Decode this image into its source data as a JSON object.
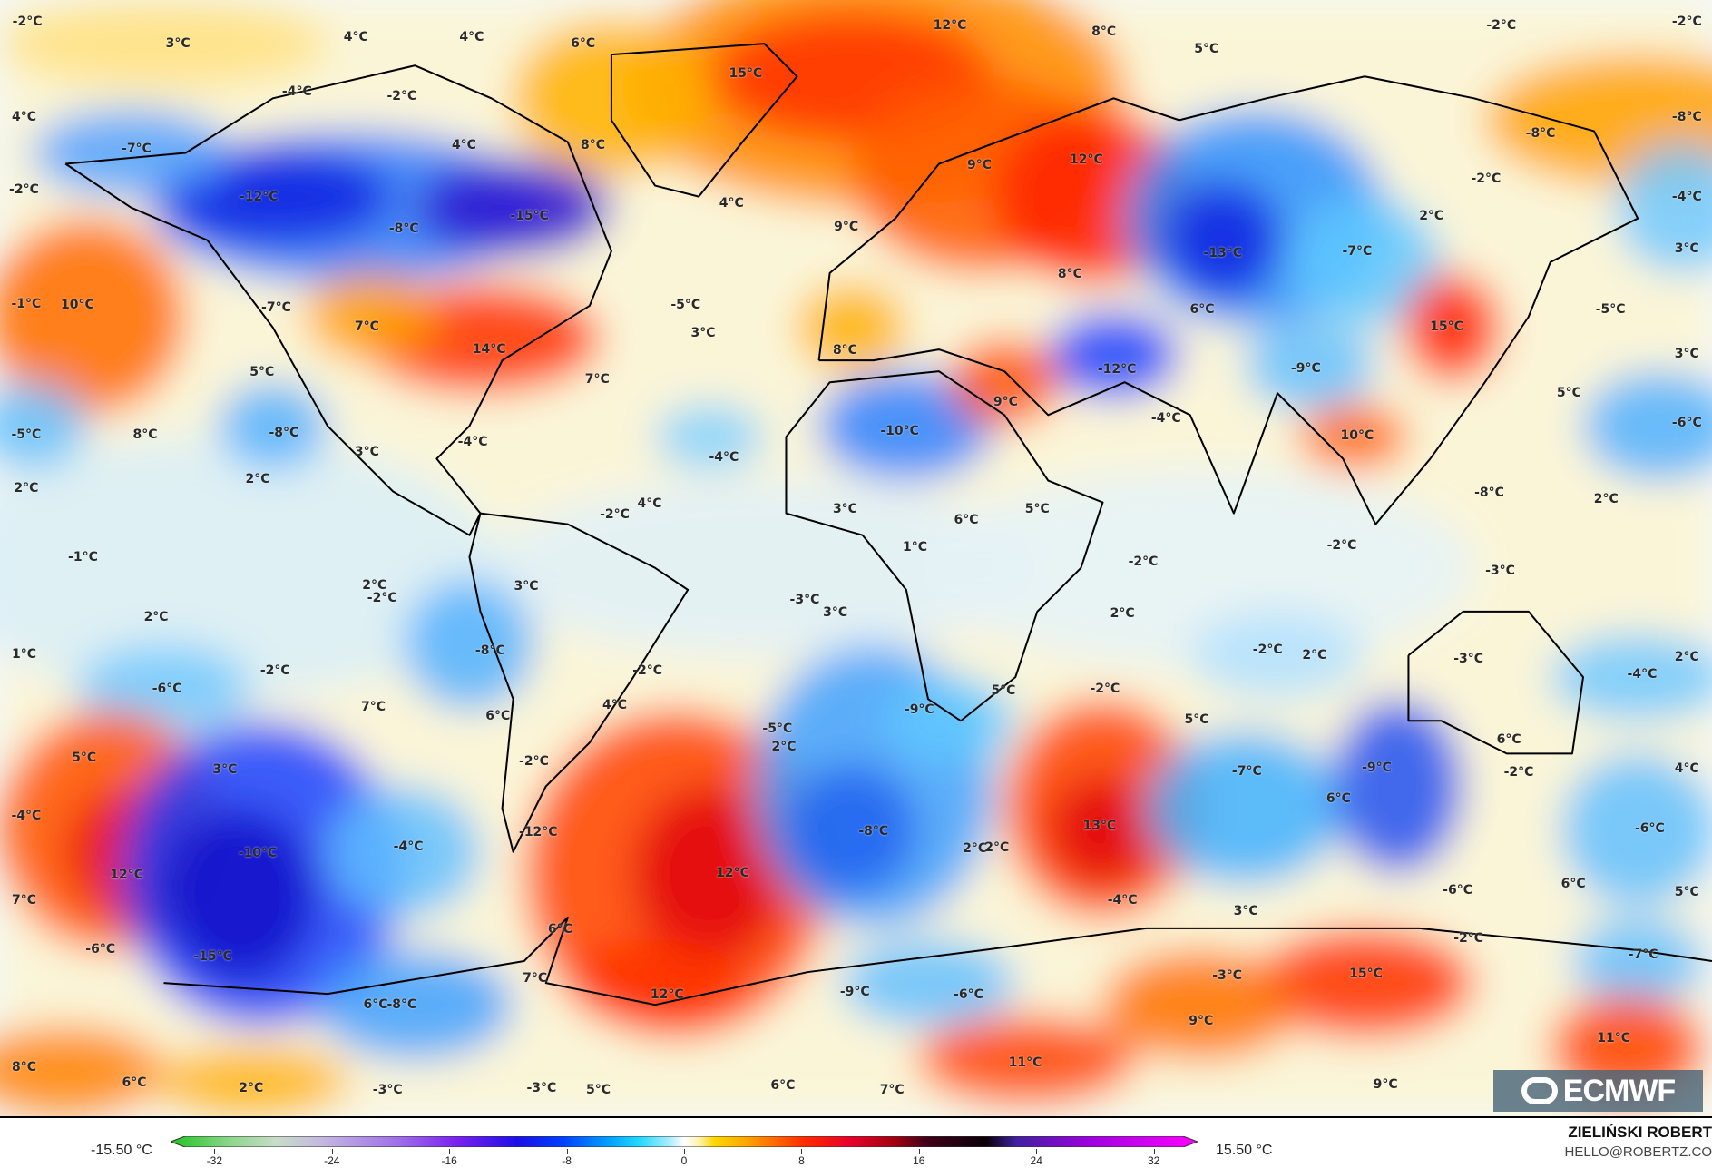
{
  "map": {
    "variable_unit": "°C",
    "labels": [
      "-2°C",
      "3°C",
      "4°C",
      "4°C",
      "6°C",
      "12°C",
      "8°C",
      "5°C",
      "-2°C",
      "-2°C",
      "15°C",
      "-4°C",
      "-2°C",
      "4°C",
      "-8°C",
      "-8°C",
      "-7°C",
      "4°C",
      "8°C",
      "9°C",
      "12°C",
      "-2°C",
      "-4°C",
      "-2°C",
      "-12°C",
      "4°C",
      "2°C",
      "-8°C",
      "-15°C",
      "9°C",
      "-13°C",
      "-7°C",
      "3°C",
      "-7°C",
      "8°C",
      "-1°C",
      "10°C",
      "7°C",
      "-5°C",
      "3°C",
      "6°C",
      "-5°C",
      "15°C",
      "14°C",
      "8°C",
      "-12°C",
      "-9°C",
      "3°C",
      "5°C",
      "7°C",
      "9°C",
      "5°C",
      "-5°C",
      "8°C",
      "-8°C",
      "3°C",
      "-4°C",
      "-10°C",
      "-4°C",
      "10°C",
      "-6°C",
      "2°C",
      "2°C",
      "-4°C",
      "-8°C",
      "2°C",
      "-2°C",
      "4°C",
      "3°C",
      "6°C",
      "5°C",
      "-1°C",
      "1°C",
      "-2°C",
      "-2°C",
      "2°C",
      "-2°C",
      "3°C",
      "-3°C",
      "-3°C",
      "2°C",
      "3°C",
      "2°C",
      "1°C",
      "-2°C",
      "-8°C",
      "-2°C",
      "-2°C",
      "2°C",
      "-3°C",
      "-4°C",
      "2°C",
      "-6°C",
      "7°C",
      "6°C",
      "4°C",
      "5°C",
      "-2°C",
      "-9°C",
      "5°C",
      "3°C",
      "-2°C",
      "-5°C",
      "2°C",
      "5°C",
      "-7°C",
      "-9°C",
      "6°C",
      "-2°C",
      "4°C",
      "-4°C",
      "-10°C",
      "-4°C",
      "-12°C",
      "-8°C",
      "2°C",
      "2°C",
      "13°C",
      "6°C",
      "-6°C",
      "12°C",
      "12°C",
      "7°C",
      "-4°C",
      "3°C",
      "6°C",
      "-6°C",
      "5°C",
      "-6°C",
      "-15°C",
      "6°C",
      "7°C",
      "-2°C",
      "-7°C",
      "-3°C",
      "15°C",
      "6°C",
      "-8°C",
      "12°C",
      "-9°C",
      "-6°C",
      "9°C",
      "11°C",
      "8°C",
      "6°C",
      "2°C",
      "-3°C",
      "-3°C",
      "5°C",
      "6°C",
      "7°C",
      "11°C",
      "9°C"
    ]
  },
  "logo": {
    "text": "ECMWF"
  },
  "colorbar": {
    "min_label": "-15.50 °C",
    "max_label": "15.50 °C",
    "ticks": [
      "-32",
      "-24",
      "-16",
      "-8",
      "0",
      "8",
      "16",
      "24",
      "32"
    ],
    "range": [
      -34,
      34
    ],
    "stops": [
      [
        -34,
        "#1fc41f"
      ],
      [
        -30,
        "#8fd68f"
      ],
      [
        -27,
        "#c8dcc8"
      ],
      [
        -24,
        "#c4b8e0"
      ],
      [
        -19,
        "#a070e8"
      ],
      [
        -15,
        "#7a20f0"
      ],
      [
        -11,
        "#1a10e8"
      ],
      [
        -8,
        "#0040ff"
      ],
      [
        -5,
        "#00a0ff"
      ],
      [
        -3,
        "#20d8ff"
      ],
      [
        -1,
        "#a8ecff"
      ],
      [
        0,
        "#ffffff"
      ],
      [
        1,
        "#fff2b0"
      ],
      [
        2,
        "#ffd800"
      ],
      [
        4,
        "#ffa800"
      ],
      [
        6,
        "#ff6a00"
      ],
      [
        8,
        "#ff2a00"
      ],
      [
        11,
        "#e8002a"
      ],
      [
        14,
        "#a00010"
      ],
      [
        16,
        "#400018"
      ],
      [
        20,
        "#0a0008"
      ],
      [
        22,
        "#4020a0"
      ],
      [
        27,
        "#a000e0"
      ],
      [
        34,
        "#ff00ff"
      ]
    ]
  },
  "credits": {
    "author": "ZIELIŃSKI ROBERT",
    "email": "HELLO@ROBERTZ.CO"
  }
}
